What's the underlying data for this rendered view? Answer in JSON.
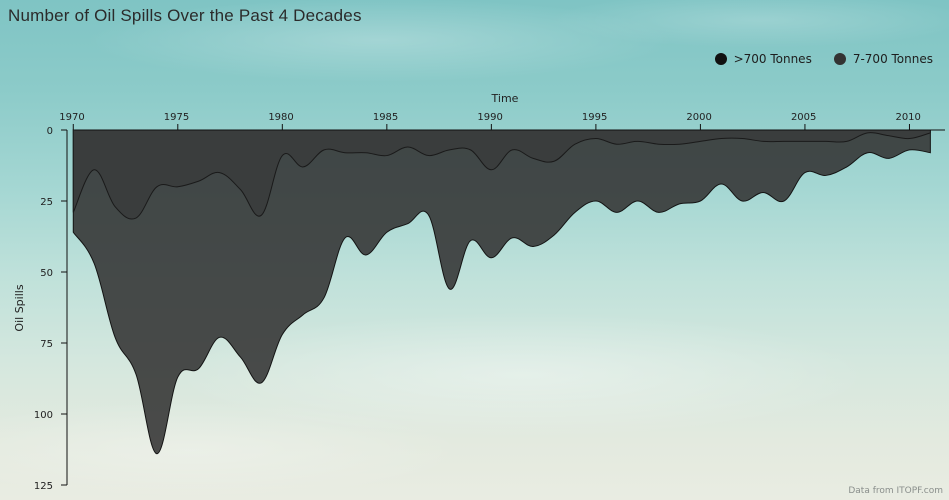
{
  "chart_data": {
    "type": "area",
    "title": "Number of Oil Spills Over the Past 4 Decades",
    "xlabel": "Time",
    "ylabel": "Oil Spills",
    "x_range": [
      1969.7,
      2011.7
    ],
    "ylim": [
      0,
      125
    ],
    "y_inverted": true,
    "x_axis_position": "top",
    "x_ticks": [
      1970,
      1975,
      1980,
      1985,
      1990,
      1995,
      2000,
      2005,
      2010
    ],
    "y_ticks": [
      0,
      25,
      50,
      75,
      100,
      125
    ],
    "legend_position": "top-right",
    "stacked": true,
    "years": [
      1970,
      1971,
      1972,
      1973,
      1974,
      1975,
      1976,
      1977,
      1978,
      1979,
      1980,
      1981,
      1982,
      1983,
      1984,
      1985,
      1986,
      1987,
      1988,
      1989,
      1990,
      1991,
      1992,
      1993,
      1994,
      1995,
      1996,
      1997,
      1998,
      1999,
      2000,
      2001,
      2002,
      2003,
      2004,
      2005,
      2006,
      2007,
      2008,
      2009,
      2010,
      2011
    ],
    "series": [
      {
        "name": ">700 Tonnes",
        "color": "#111111",
        "values": [
          29,
          14,
          27,
          31,
          20,
          20,
          18,
          15,
          21,
          30,
          9,
          13,
          7,
          8,
          8,
          9,
          6,
          9,
          7,
          7,
          14,
          7,
          10,
          11,
          5,
          3,
          5,
          4,
          5,
          5,
          4,
          3,
          3,
          4,
          4,
          4,
          4,
          4,
          1,
          2,
          3,
          1
        ]
      },
      {
        "name": "7-700 Tonnes",
        "color": "#333333",
        "values": [
          7,
          33,
          46,
          55,
          94,
          67,
          66,
          58,
          59,
          59,
          63,
          52,
          52,
          30,
          36,
          27,
          27,
          21,
          49,
          32,
          31,
          31,
          31,
          26,
          24,
          22,
          24,
          21,
          24,
          21,
          21,
          16,
          22,
          18,
          21,
          11,
          12,
          9,
          7,
          8,
          4,
          7
        ]
      }
    ],
    "credit": "Data from ITOPF.com"
  }
}
